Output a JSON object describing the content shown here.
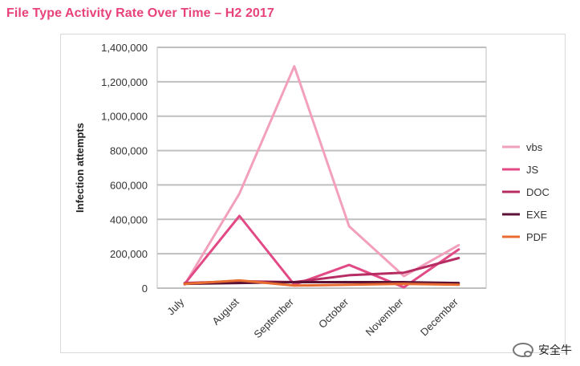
{
  "chart_data": {
    "type": "line",
    "title": "File Type Activity Rate Over Time – H2 2017",
    "ylabel": "Infection attempts",
    "xlabel": "",
    "categories": [
      "July",
      "August",
      "September",
      "October",
      "November",
      "December"
    ],
    "ylim": [
      0,
      1400000
    ],
    "yticks": [
      0,
      200000,
      400000,
      600000,
      800000,
      1000000,
      1200000,
      1400000
    ],
    "ytick_labels": [
      "0",
      "200,000",
      "400,000",
      "600,000",
      "800,000",
      "1,000,000",
      "1,200,000",
      "1,400,000"
    ],
    "grid": true,
    "legend_position": "right",
    "series": [
      {
        "name": "vbs",
        "color": "#f2a0bb",
        "values": [
          20000,
          550000,
          1290000,
          360000,
          70000,
          250000
        ]
      },
      {
        "name": "JS",
        "color": "#e24a85",
        "values": [
          25000,
          420000,
          20000,
          135000,
          5000,
          225000
        ]
      },
      {
        "name": "DOC",
        "color": "#b52d63",
        "values": [
          30000,
          40000,
          35000,
          75000,
          90000,
          175000
        ]
      },
      {
        "name": "EXE",
        "color": "#5b1236",
        "values": [
          25000,
          30000,
          35000,
          35000,
          35000,
          30000
        ]
      },
      {
        "name": "PDF",
        "color": "#e86b30",
        "values": [
          25000,
          45000,
          15000,
          20000,
          25000,
          20000
        ]
      }
    ]
  },
  "watermark": {
    "text": "安全牛",
    "icon": "wechat-icon"
  }
}
